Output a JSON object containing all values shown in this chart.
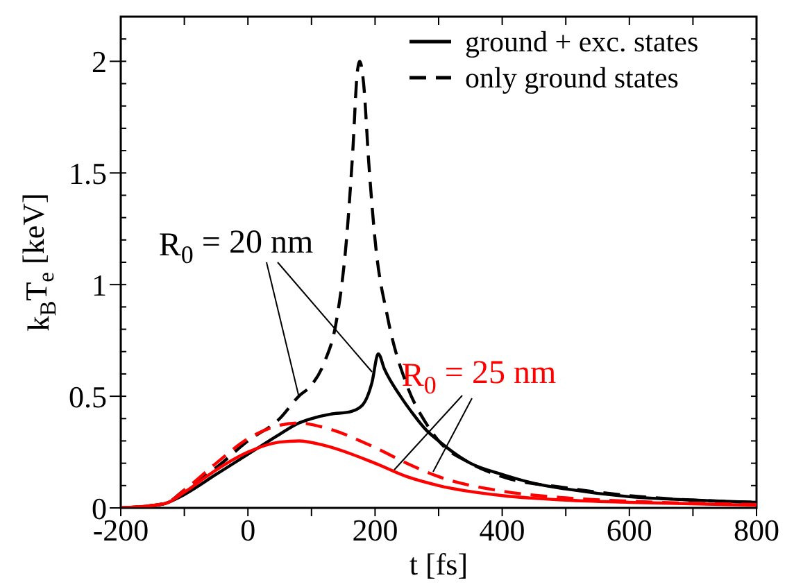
{
  "chart_data": {
    "type": "line",
    "xlabel": "t [fs]",
    "ylabel": "k$_{B}$T$_{e}$ [keV]",
    "xlim": [
      -200,
      800
    ],
    "xticks": [
      -200,
      {
        "value": -100,
        "label": null
      },
      0,
      {
        "value": 100,
        "label": null
      },
      200,
      {
        "value": 300,
        "label": null
      },
      400,
      {
        "value": 500,
        "label": null
      },
      600,
      {
        "value": 700,
        "label": null
      },
      800
    ],
    "ylim": [
      0,
      2.2
    ],
    "yticks": [
      0,
      0.5,
      1,
      1.5,
      2
    ],
    "legend": "top right",
    "series": [
      {
        "name": "ground + exc. states",
        "color": "#000000",
        "line_style": "solid",
        "x": [
          -200,
          -150,
          -130,
          -100,
          -50,
          0,
          50,
          80,
          100,
          130,
          160,
          180,
          195,
          205,
          215,
          240,
          260,
          280,
          300,
          350,
          400,
          450,
          500,
          600,
          700,
          800
        ],
        "values": [
          0,
          0.01,
          0.02,
          0.06,
          0.15,
          0.24,
          0.33,
          0.38,
          0.4,
          0.42,
          0.43,
          0.46,
          0.56,
          0.69,
          0.62,
          0.5,
          0.42,
          0.35,
          0.3,
          0.2,
          0.15,
          0.11,
          0.085,
          0.05,
          0.035,
          0.025
        ]
      },
      {
        "name": "only ground states",
        "color": "#000000",
        "line_style": "dashed",
        "x": [
          -200,
          -130,
          -100,
          -50,
          0,
          50,
          80,
          100,
          120,
          140,
          155,
          165,
          172,
          176,
          182,
          190,
          200,
          220,
          250,
          280,
          300,
          350,
          400,
          500,
          600,
          700,
          800
        ],
        "values": [
          0,
          0.02,
          0.08,
          0.18,
          0.3,
          0.4,
          0.5,
          0.55,
          0.65,
          0.85,
          1.2,
          1.6,
          1.95,
          2.0,
          1.9,
          1.55,
          1.2,
          0.85,
          0.55,
          0.38,
          0.3,
          0.2,
          0.14,
          0.09,
          0.055,
          0.035,
          0.025
        ]
      },
      {
        "color": "#ff0000",
        "line_style": "solid",
        "x": [
          -200,
          -130,
          -100,
          -50,
          0,
          50,
          80,
          120,
          200,
          250,
          300,
          400,
          500,
          600,
          800
        ],
        "values": [
          0,
          0.02,
          0.07,
          0.17,
          0.25,
          0.295,
          0.3,
          0.28,
          0.2,
          0.14,
          0.1,
          0.055,
          0.035,
          0.025,
          0.012
        ]
      },
      {
        "color": "#ff0000",
        "line_style": "dashed",
        "x": [
          -200,
          -130,
          -100,
          -50,
          0,
          50,
          80,
          120,
          200,
          250,
          300,
          400,
          500,
          600,
          800
        ],
        "values": [
          0,
          0.02,
          0.08,
          0.2,
          0.31,
          0.37,
          0.38,
          0.36,
          0.27,
          0.2,
          0.14,
          0.075,
          0.045,
          0.03,
          0.015
        ]
      }
    ],
    "annotations": [
      {
        "text": "R$_{0}$ = 20 nm",
        "x": 80,
        "y": 0.5
      },
      {
        "text": "R$_{0}$ = 25 nm",
        "x": 230,
        "y": 0.17
      }
    ]
  }
}
